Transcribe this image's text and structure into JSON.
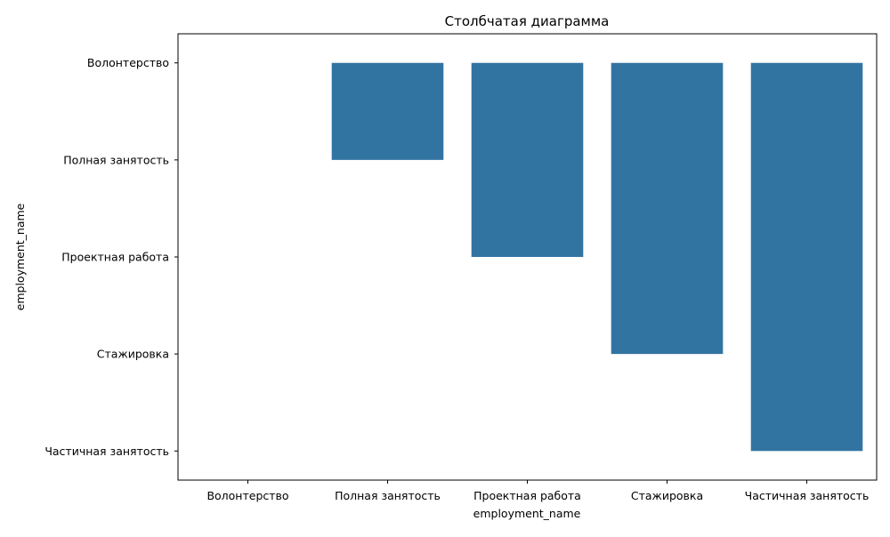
{
  "chart_data": {
    "type": "bar",
    "title": "Столбчатая диаграмма",
    "xlabel": "employment_name",
    "ylabel": "employment_name",
    "categories": [
      "Волонтерство",
      "Полная занятость",
      "Проектная работа",
      "Стажировка",
      "Частичная занятость"
    ],
    "y_categories": [
      "Волонтерство",
      "Полная занятость",
      "Проектная работа",
      "Стажировка",
      "Частичная занятость"
    ],
    "values": [
      "Волонтерство",
      "Полная занятость",
      "Проектная работа",
      "Стажировка",
      "Частичная занятость"
    ],
    "y_axis_inverted": true,
    "grid": false,
    "legend": "none",
    "bar_color": "#3274a1"
  }
}
